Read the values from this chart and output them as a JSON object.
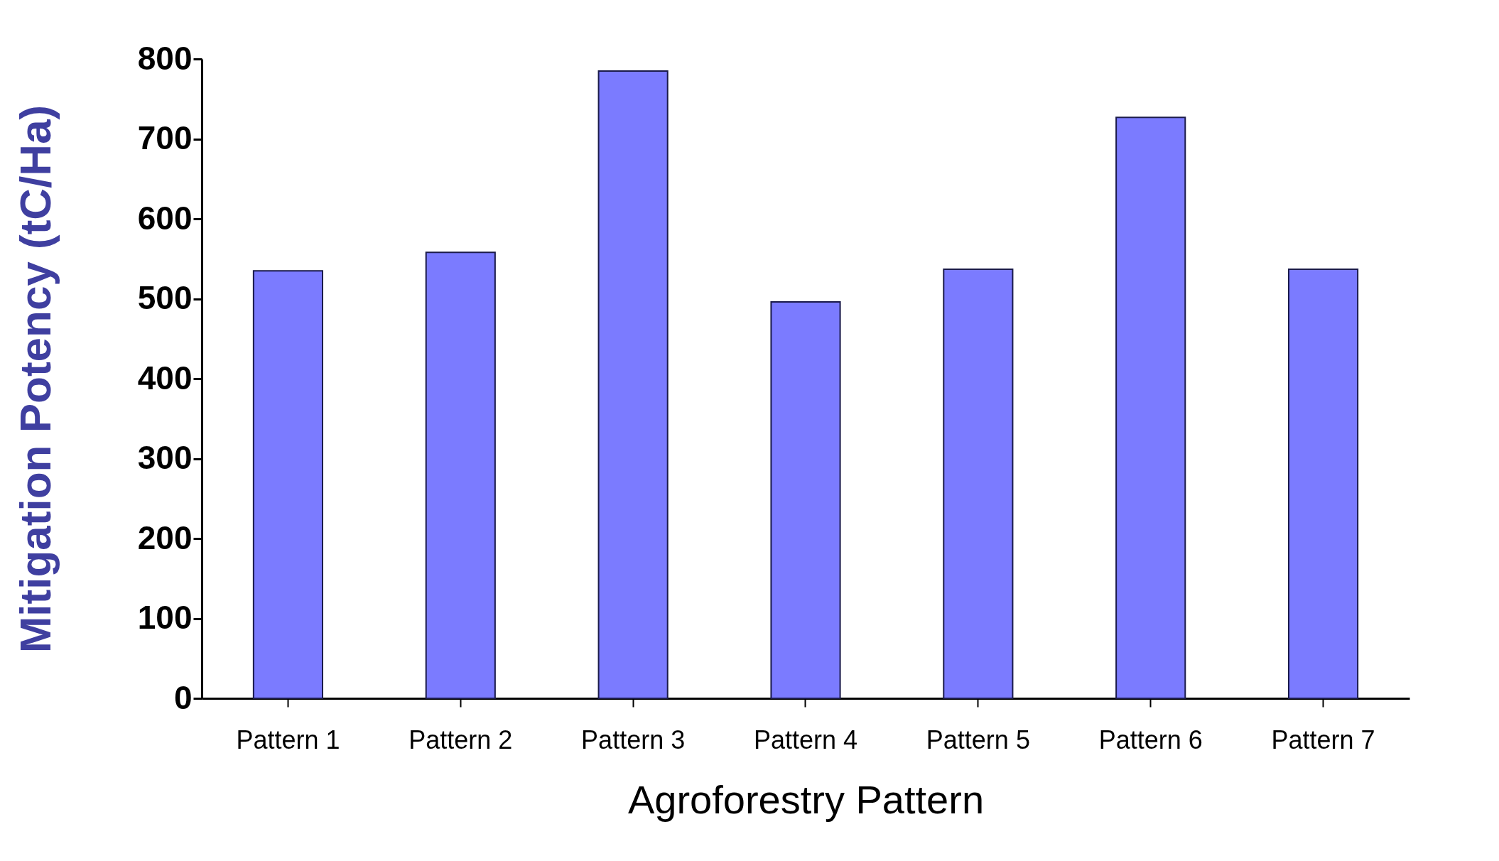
{
  "chart_data": {
    "type": "bar",
    "xlabel": "Agroforestry Pattern",
    "ylabel": "Mitigation Potency (tC/Ha)",
    "categories": [
      "Pattern 1",
      "Pattern 2",
      "Pattern 3",
      "Pattern 4",
      "Pattern 5",
      "Pattern 6",
      "Pattern 7"
    ],
    "values": [
      535,
      558,
      785,
      496,
      537,
      727,
      537
    ],
    "color": "#7b7bff",
    "ylim": [
      0,
      800
    ],
    "yticks": [
      0,
      100,
      200,
      300,
      400,
      500,
      600,
      700,
      800
    ],
    "grid": false
  }
}
